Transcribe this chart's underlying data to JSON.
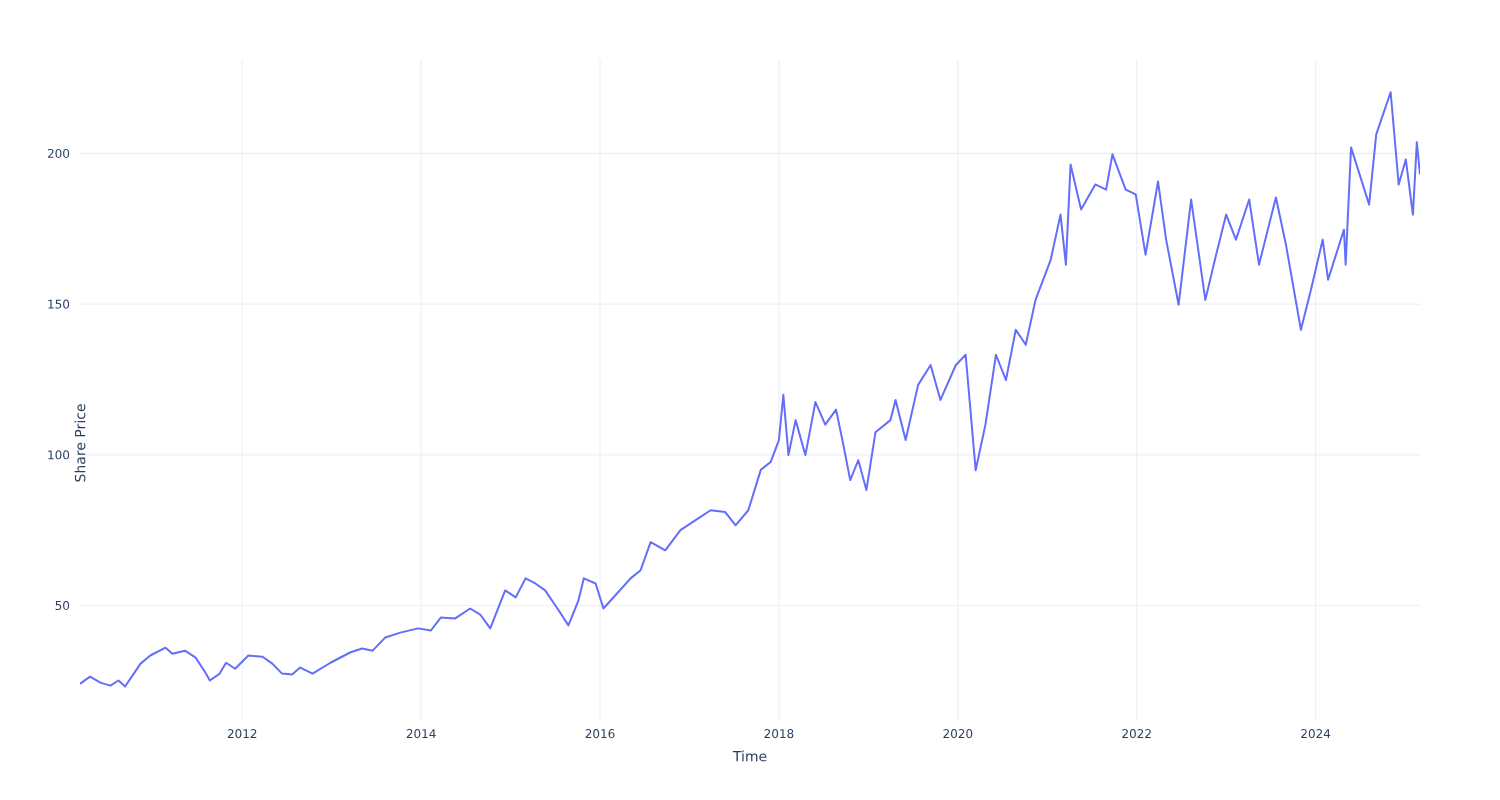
{
  "chart_data": {
    "type": "line",
    "xlabel": "Time",
    "ylabel": "Share Price",
    "color": "#636efa",
    "line_style": "solid",
    "grid": true,
    "xlim": [
      "2010-03-10",
      "2025-03-03"
    ],
    "ylim": [
      12,
      231
    ],
    "xticks": [
      {
        "value": "2012",
        "label": "2012"
      },
      {
        "value": "2014",
        "label": "2014"
      },
      {
        "value": "2016",
        "label": "2016"
      },
      {
        "value": "2018",
        "label": "2018"
      },
      {
        "value": "2020",
        "label": "2020"
      },
      {
        "value": "2022",
        "label": "2022"
      },
      {
        "value": "2024",
        "label": "2024"
      }
    ],
    "yticks": [
      50,
      100,
      150,
      200
    ],
    "x": [
      "2010-03-10",
      "2010-04-20",
      "2010-06-01",
      "2010-07-12",
      "2010-08-14",
      "2010-09-10",
      "2010-11-12",
      "2010-12-22",
      "2011-02-22",
      "2011-03-22",
      "2011-05-12",
      "2011-06-25",
      "2011-08-04",
      "2011-08-22",
      "2011-10-01",
      "2011-10-27",
      "2011-12-03",
      "2012-01-26",
      "2012-03-24",
      "2012-05-03",
      "2012-06-12",
      "2012-07-23",
      "2012-08-25",
      "2012-10-15",
      "2012-12-27",
      "2013-03-17",
      "2013-05-05",
      "2013-06-17",
      "2013-08-08",
      "2013-10-08",
      "2013-12-20",
      "2014-02-10",
      "2014-03-22",
      "2014-05-20",
      "2014-07-20",
      "2014-08-30",
      "2014-10-10",
      "2014-12-10",
      "2015-01-22",
      "2015-03-03",
      "2015-04-12",
      "2015-05-22",
      "2015-07-16",
      "2015-08-25",
      "2015-10-05",
      "2015-10-27",
      "2015-12-14",
      "2016-01-15",
      "2016-03-03",
      "2016-05-05",
      "2016-06-15",
      "2016-07-26",
      "2016-09-24",
      "2016-11-25",
      "2017-01-26",
      "2017-03-28",
      "2017-05-27",
      "2017-07-08",
      "2017-08-29",
      "2017-10-19",
      "2017-11-28",
      "2018-01-01",
      "2018-01-19",
      "2018-02-09",
      "2018-03-10",
      "2018-04-19",
      "2018-05-30",
      "2018-07-09",
      "2018-08-22",
      "2018-09-17",
      "2018-10-19",
      "2018-11-21",
      "2018-12-24",
      "2019-01-30",
      "2019-04-01",
      "2019-04-22",
      "2019-06-02",
      "2019-07-23",
      "2019-09-12",
      "2019-10-22",
      "2019-12-24",
      "2020-02-02",
      "2020-03-14",
      "2020-04-23",
      "2020-06-05",
      "2020-07-16",
      "2020-08-25",
      "2020-10-05",
      "2020-11-14",
      "2021-01-15",
      "2021-02-24",
      "2021-03-18",
      "2021-04-06",
      "2021-05-19",
      "2021-07-16",
      "2021-08-29",
      "2021-09-24",
      "2021-11-17",
      "2021-12-28",
      "2022-02-06",
      "2022-03-29",
      "2022-05-01",
      "2022-06-21",
      "2022-08-11",
      "2022-10-08",
      "2022-11-21",
      "2023-01-01",
      "2023-02-10",
      "2023-04-05",
      "2023-05-15",
      "2023-07-23",
      "2023-09-02",
      "2023-11-02",
      "2023-12-13",
      "2024-01-30",
      "2024-02-21",
      "2024-04-26",
      "2024-05-03",
      "2024-05-25",
      "2024-08-07",
      "2024-09-05",
      "2024-11-03",
      "2024-12-06",
      "2025-01-04",
      "2025-02-02",
      "2025-02-18",
      "2025-03-03"
    ],
    "values": [
      24,
      26.4,
      24.4,
      23.4,
      25.1,
      23.1,
      30.7,
      33.4,
      36,
      34,
      35,
      32.7,
      27.7,
      25.1,
      27.4,
      31,
      29,
      33.4,
      33,
      30.7,
      27.4,
      27.1,
      29.4,
      27.4,
      31,
      34.4,
      35.7,
      35,
      39.4,
      41,
      42.4,
      41.7,
      46,
      45.7,
      49,
      47,
      42.4,
      55,
      52.7,
      59,
      57.3,
      55,
      48.4,
      43.4,
      51.7,
      59,
      57.3,
      49,
      53.3,
      59,
      61.7,
      71,
      68.3,
      75,
      78.3,
      81.6,
      81,
      76.6,
      81.6,
      95,
      97.6,
      104.9,
      119.9,
      99.9,
      111.5,
      99.9,
      117.5,
      110,
      115,
      104.9,
      91.6,
      98.2,
      88.3,
      107.5,
      111.5,
      118.2,
      104.9,
      123.2,
      129.8,
      118.2,
      129.8,
      133.2,
      94.9,
      110,
      133.2,
      124.8,
      141.5,
      136.5,
      151.4,
      164.7,
      179.7,
      163.1,
      196.3,
      181.4,
      189.7,
      188,
      199.7,
      188,
      186.4,
      166.4,
      190.7,
      171.4,
      149.8,
      184.7,
      151.4,
      166.4,
      179.7,
      171.4,
      184.7,
      163.1,
      185.4,
      169.7,
      141.5,
      154.8,
      171.4,
      158.1,
      174.7,
      163.1,
      202,
      183,
      206.3,
      220.3,
      189.7,
      198,
      179.7,
      203.7,
      193
    ]
  }
}
